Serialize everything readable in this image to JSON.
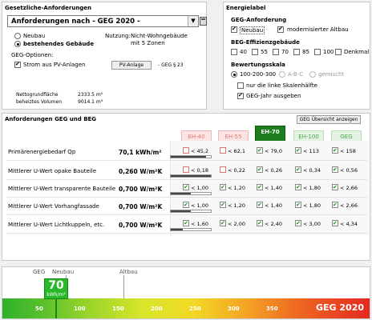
{
  "legal": {
    "title": "Gesetzliche-Anforderungen",
    "dropdown_value": "Anforderungen nach  - GEG 2020 -",
    "radio_neubau": "Neubau",
    "radio_bestehend": "bestehendes Gebäude",
    "nutzung_label": "Nutzung:",
    "nutzung_value": "Nicht-Wohngebäude",
    "zonen_value": "mit 5 Zonen",
    "options_label": "GEG-Optionen:",
    "strom_label": "Strom aus PV-Anlagen",
    "pv_button": "PV-Anlage",
    "geg_ref": "- GEG § 23",
    "nettogrundflaeche_label": "Nettogrundfläche",
    "nettogrundflaeche_value": "2333.5 m²",
    "volumen_label": "beheiztes Volumen",
    "volumen_value": "9014.1 m³"
  },
  "energy_label": {
    "title": "Energielabel",
    "geg_section": "GEG-Anforderung",
    "neubau": "Neubau",
    "modernisiert": "modernisierter Altbau",
    "beg_section": "BEG-Effizienzgebäude",
    "beg_levels": [
      "40",
      "55",
      "70",
      "85",
      "100",
      "Denkmal"
    ],
    "scale_section": "Bewertungsskala",
    "scale_opt1": "100-200-300",
    "scale_opt2": "A-B-C",
    "scale_opt3": "gemischt",
    "half_scale": "nur die linke Skalenhälfte",
    "geg_year": "GEG-Jahr ausgeben"
  },
  "requirements": {
    "title": "Anforderungen GEG und BEG",
    "overview_button": "GEG Übersicht anzeigen",
    "columns": [
      "EH-40",
      "EH-55",
      "EH-70",
      "EH-100",
      "GEG"
    ],
    "rows": [
      {
        "label": "Primärenergiebedarf Qp",
        "value": "70,1 kWh/m²",
        "cells": [
          "< 45,2",
          "< 62,1",
          "< 79,0",
          "< 113",
          "< 158"
        ],
        "ok": [
          false,
          false,
          true,
          true,
          true
        ],
        "fill": 0.88
      },
      {
        "label": "Mittlerer U-Wert opake Bauteile",
        "value": "0,260 W/m²K",
        "cells": [
          "< 0,18",
          "< 0,22",
          "< 0,26",
          "< 0,34",
          "< 0,56"
        ],
        "ok": [
          false,
          false,
          true,
          true,
          true
        ],
        "fill": 1.0
      },
      {
        "label": "Mittlerer U-Wert transparente Bauteile",
        "value": "0,700 W/m²K",
        "cells": [
          "< 1,00",
          "< 1,20",
          "< 1,40",
          "< 1,80",
          "< 2,66"
        ],
        "ok": [
          true,
          true,
          true,
          true,
          true
        ],
        "fill": 0.5
      },
      {
        "label": "Mittlerer U-Wert Vorhangfassade",
        "value": "0,700 W/m²K",
        "cells": [
          "< 1,00",
          "< 1,20",
          "< 1,40",
          "< 1,80",
          "< 2,66"
        ],
        "ok": [
          true,
          true,
          true,
          true,
          true
        ],
        "fill": 0.5
      },
      {
        "label": "Mittlerer U-Wert Lichtkuppeln, etc.",
        "value": "0,700 W/m²K",
        "cells": [
          "< 1,60",
          "< 2,00",
          "< 2,40",
          "< 3,00",
          "< 4,34"
        ],
        "ok": [
          true,
          true,
          true,
          true,
          true
        ],
        "fill": 0.29
      }
    ]
  },
  "scale": {
    "label_geg": "GEG",
    "label_neubau": "Neubau",
    "label_altbau": "Altbau",
    "value": "70",
    "unit": "kWh/m²",
    "ticks": [
      "50",
      "100",
      "150",
      "200",
      "250",
      "300",
      "350"
    ],
    "year_label": "GEG 2020"
  }
}
